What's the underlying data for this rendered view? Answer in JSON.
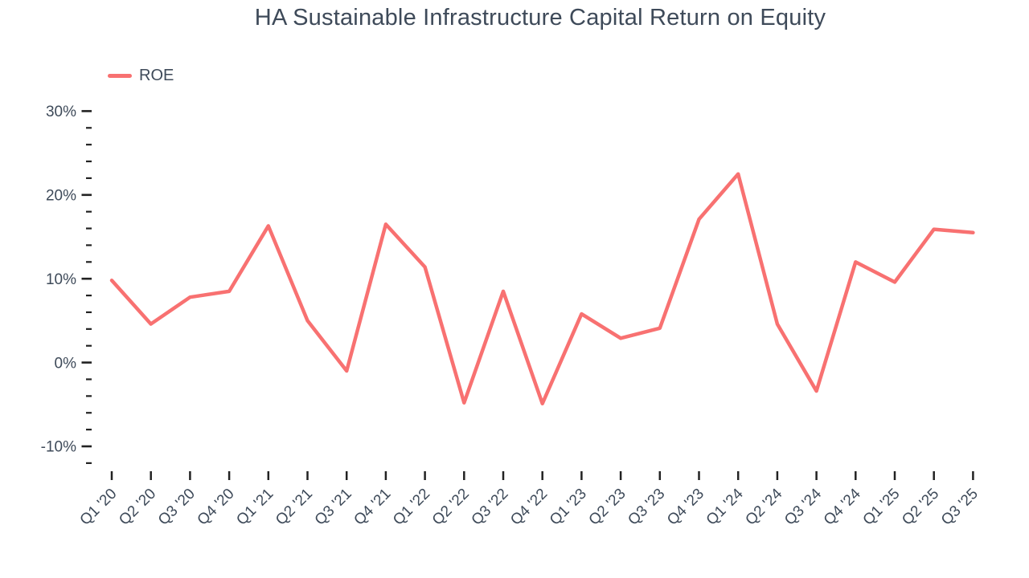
{
  "header": {
    "title": "HA Sustainable Infrastructure Capital Return on Equity"
  },
  "legend": {
    "items": [
      {
        "label": "ROE",
        "color": "#f87171"
      }
    ]
  },
  "chart_data": {
    "type": "line",
    "title": "HA Sustainable Infrastructure Capital Return on Equity",
    "categories": [
      "Q1 '20",
      "Q2 '20",
      "Q3 '20",
      "Q4 '20",
      "Q1 '21",
      "Q2 '21",
      "Q3 '21",
      "Q4 '21",
      "Q1 '22",
      "Q2 '22",
      "Q3 '22",
      "Q4 '22",
      "Q1 '23",
      "Q2 '23",
      "Q3 '23",
      "Q4 '23",
      "Q1 '24",
      "Q2 '24",
      "Q3 '24",
      "Q4 '24",
      "Q1 '25",
      "Q2 '25",
      "Q3 '25"
    ],
    "series": [
      {
        "name": "ROE",
        "color": "#f87171",
        "values": [
          9.8,
          4.6,
          7.8,
          8.5,
          16.3,
          5.0,
          -1.0,
          16.5,
          11.4,
          -4.8,
          8.5,
          -4.9,
          5.8,
          2.9,
          4.1,
          17.1,
          22.5,
          4.6,
          -3.4,
          12.0,
          9.6,
          15.9,
          15.5
        ]
      }
    ],
    "xlabel": "",
    "ylabel": "",
    "y_axis": {
      "unit": "%",
      "major_ticks": [
        30,
        20,
        10,
        0,
        -10
      ],
      "major_tick_labels": [
        "30%",
        "20%",
        "10%",
        "0%",
        "-10%"
      ],
      "minor_tick_step": 2,
      "axis_top": 30,
      "axis_bottom": -12
    },
    "ylim": [
      -12,
      30
    ],
    "grid": false,
    "legend_position": "top-left"
  },
  "colors": {
    "line": "#f87171",
    "text": "#3e4a59",
    "tick_marks": "#222222",
    "background": "#ffffff"
  }
}
